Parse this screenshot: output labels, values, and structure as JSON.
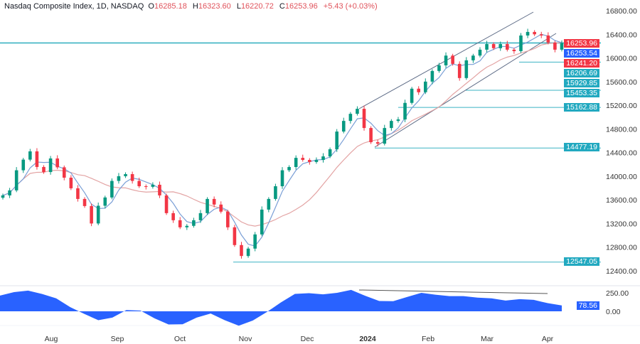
{
  "header": {
    "title": "Nasdaq Composite Index, 1D, NASDAQ",
    "o_label": "O",
    "o": "16285.18",
    "h_label": "H",
    "h": "16323.60",
    "l_label": "L",
    "l": "16220.72",
    "c_label": "C",
    "c": "16253.96",
    "change": "+5.43 (+0.03%)"
  },
  "price_axis": [
    "16800.00",
    "16400.00",
    "16000.00",
    "15600.00",
    "15200.00",
    "14800.00",
    "14400.00",
    "14000.00",
    "13600.00",
    "13200.00",
    "12800.00",
    "12400.00"
  ],
  "indicator_axis": [
    "250.00",
    "0.00"
  ],
  "time_axis": [
    "Aug",
    "Sep",
    "Oct",
    "Nov",
    "Dec",
    "2024",
    "Feb",
    "Mar",
    "Apr"
  ],
  "labels": [
    {
      "text": "16253.96",
      "color": "#f23645"
    },
    {
      "text": "16253.54",
      "color": "#2962ff"
    },
    {
      "text": "16241.20",
      "color": "#f23645"
    },
    {
      "text": "16206.69",
      "color": "#22a9c0"
    },
    {
      "text": "15929.85",
      "color": "#22a9c0"
    },
    {
      "text": "15453.35",
      "color": "#22a9c0"
    },
    {
      "text": "15162.88",
      "color": "#22a9c0"
    },
    {
      "text": "14477.19",
      "color": "#22a9c0"
    },
    {
      "text": "12547.05",
      "color": "#22a9c0"
    },
    {
      "text": "78.56",
      "color": "#2962ff"
    }
  ],
  "chart_data": {
    "type": "candlestick",
    "symbol": "Nasdaq Composite Index",
    "interval": "1D",
    "up_color": "#089981",
    "down_color": "#f23645",
    "ylim": [
      12400,
      16800
    ],
    "closes": [
      13675,
      13760,
      14100,
      14280,
      14420,
      14156,
      14070,
      14300,
      14150,
      13975,
      13795,
      13615,
      13495,
      13200,
      13500,
      13640,
      13920,
      14000,
      14035,
      13920,
      13830,
      13820,
      13855,
      13675,
      13375,
      13255,
      13135,
      13160,
      13255,
      13375,
      13615,
      13520,
      13400,
      13135,
      12835,
      12650,
      12775,
      13015,
      13435,
      13615,
      13830,
      14100,
      14155,
      14310,
      14275,
      14240,
      14275,
      14335,
      14455,
      14755,
      14935,
      15055,
      15140,
      14815,
      14575,
      14550,
      14815,
      14935,
      14960,
      15240,
      15480,
      15420,
      15600,
      15780,
      15875,
      16040,
      15900,
      15660,
      15960,
      16040,
      16140,
      16235,
      16165,
      16235,
      16140,
      16115,
      16380,
      16440,
      16400,
      16380,
      16260,
      16140,
      16254
    ],
    "levels": [
      16253.96,
      15929.85,
      15453.35,
      15162.88,
      14477.19,
      12547.05
    ],
    "indicator": {
      "values": [
        213,
        260,
        280,
        234,
        175,
        57,
        -35,
        -120,
        -85,
        17,
        10,
        -95,
        -178,
        -175,
        -85,
        -30,
        -120,
        -195,
        -125,
        -10,
        120,
        235,
        245,
        230,
        250,
        290,
        210,
        140,
        137,
        195,
        250,
        225,
        205,
        205,
        185,
        175,
        145,
        165,
        155,
        110,
        79
      ],
      "last": "78.56",
      "ylim": [
        -300,
        320
      ],
      "color": "#2962ff"
    }
  }
}
